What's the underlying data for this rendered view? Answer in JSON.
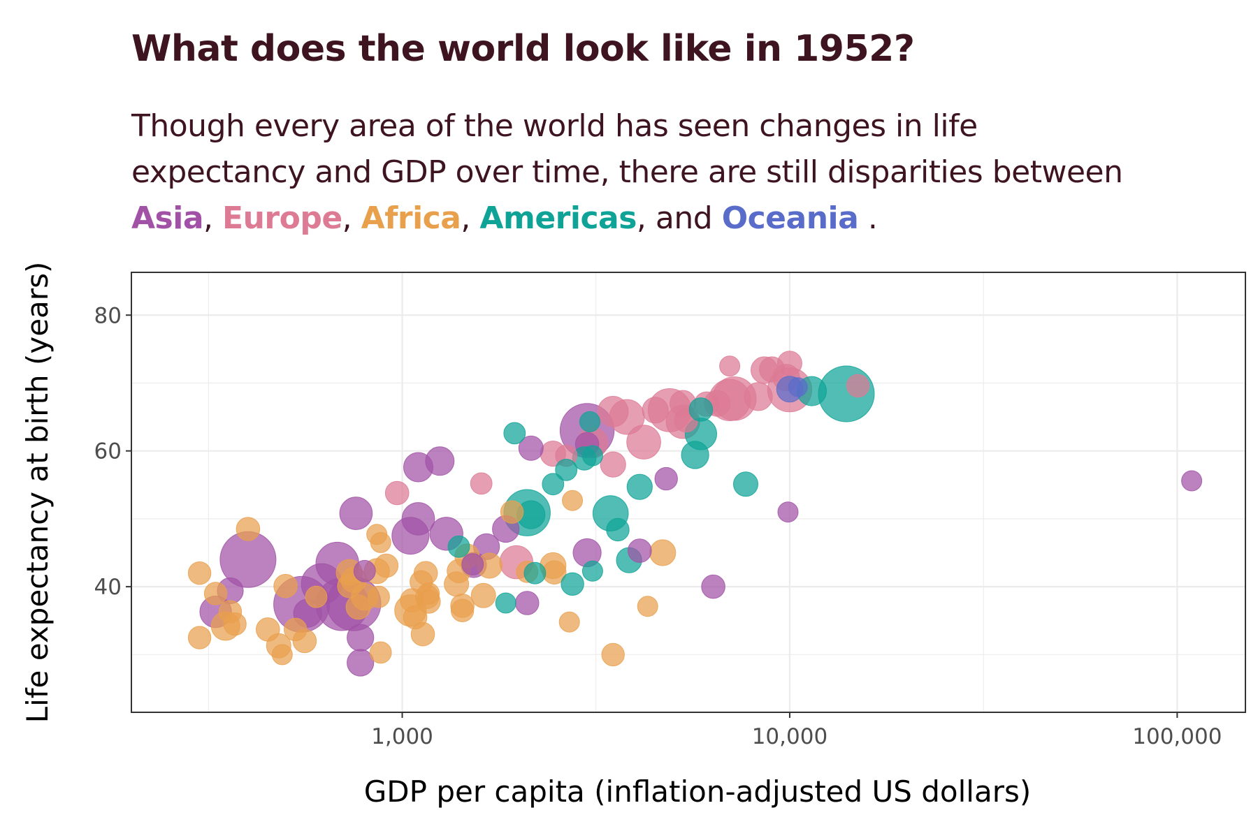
{
  "chart_data": {
    "type": "scatter",
    "title": "What does the world look like in 1952?",
    "subtitle": {
      "line1": "Though every area of the world has seen changes in life",
      "line2": "expectancy and GDP over time, there are still disparities between",
      "asia": "Asia",
      "europe": "Europe",
      "africa": "Africa",
      "americas": "Americas",
      "oceania": "Oceania",
      "sep1": ",",
      "sep2": ",",
      "sep3": ",",
      "sep4": ", ",
      "and": "and",
      "end": "."
    },
    "xlabel": "GDP per capita (inflation-adjusted US dollars)",
    "ylabel": "Life expectancy at birth (years)",
    "x_scale": "log10",
    "xlim": [
      200,
      150000
    ],
    "ylim": [
      21.5,
      86.3
    ],
    "x_ticks": [
      1000,
      10000,
      100000
    ],
    "x_tick_labels": [
      "1,000",
      "10,000",
      "100,000"
    ],
    "y_ticks": [
      40,
      60,
      80
    ],
    "y_tick_labels": [
      "40",
      "60",
      "80"
    ],
    "grid": true,
    "legend": "none",
    "colors": {
      "Asia": "#a152a6",
      "Europe": "#dd7a94",
      "Africa": "#e9a04d",
      "Americas": "#0fa397",
      "Oceania": "#5a6cca",
      "title": "#3d1420"
    },
    "size_variable": "population (millions)",
    "points": [
      {
        "c": "Asia",
        "x": 400,
        "y": 44,
        "pop": 556
      },
      {
        "c": "Asia",
        "x": 550,
        "y": 37.4,
        "pop": 372
      },
      {
        "c": "Asia",
        "x": 750,
        "y": 37.5,
        "pop": 86
      },
      {
        "c": "Asia",
        "x": 700,
        "y": 37.4,
        "pop": 80
      },
      {
        "c": "Asia",
        "x": 1300,
        "y": 47.8,
        "pop": 21
      },
      {
        "c": "Asia",
        "x": 680,
        "y": 43.4,
        "pop": 46
      },
      {
        "c": "Asia",
        "x": 3000,
        "y": 63,
        "pop": 86
      },
      {
        "c": "Asia",
        "x": 1050,
        "y": 47.5,
        "pop": 30
      },
      {
        "c": "Asia",
        "x": 620,
        "y": 40.4,
        "pop": 40
      },
      {
        "c": "Asia",
        "x": 1100,
        "y": 50,
        "pop": 20
      },
      {
        "c": "Asia",
        "x": 760,
        "y": 50.8,
        "pop": 20
      },
      {
        "c": "Asia",
        "x": 1100,
        "y": 57.6,
        "pop": 14
      },
      {
        "c": "Asia",
        "x": 1250,
        "y": 58.5,
        "pop": 13
      },
      {
        "c": "Asia",
        "x": 330,
        "y": 36.3,
        "pop": 18
      },
      {
        "c": "Asia",
        "x": 570,
        "y": 36.1,
        "pop": 12
      },
      {
        "c": "Asia",
        "x": 780,
        "y": 32.5,
        "pop": 10
      },
      {
        "c": "Asia",
        "x": 780,
        "y": 28.8,
        "pop": 10
      },
      {
        "c": "Asia",
        "x": 360,
        "y": 39.4,
        "pop": 9
      },
      {
        "c": "Asia",
        "x": 1650,
        "y": 45.9,
        "pop": 9
      },
      {
        "c": "Asia",
        "x": 1850,
        "y": 48.5,
        "pop": 10
      },
      {
        "c": "Asia",
        "x": 1530,
        "y": 43.2,
        "pop": 8
      },
      {
        "c": "Asia",
        "x": 3000,
        "y": 45,
        "pop": 12
      },
      {
        "c": "Asia",
        "x": 2100,
        "y": 37.6,
        "pop": 6
      },
      {
        "c": "Asia",
        "x": 2150,
        "y": 60.4,
        "pop": 7
      },
      {
        "c": "Asia",
        "x": 3000,
        "y": 61,
        "pop": 6
      },
      {
        "c": "Asia",
        "x": 4100,
        "y": 45.3,
        "pop": 6
      },
      {
        "c": "Asia",
        "x": 4800,
        "y": 55.9,
        "pop": 5
      },
      {
        "c": "Asia",
        "x": 6350,
        "y": 40,
        "pop": 6
      },
      {
        "c": "Asia",
        "x": 9900,
        "y": 51,
        "pop": 3
      },
      {
        "c": "Asia",
        "x": 109000,
        "y": 55.6,
        "pop": 3
      },
      {
        "c": "Asia",
        "x": 800,
        "y": 42.3,
        "pop": 4
      },
      {
        "c": "Asia",
        "x": 1520,
        "y": 43.3,
        "pop": 4
      },
      {
        "c": "Europe",
        "x": 10000,
        "y": 69,
        "pop": 50
      },
      {
        "c": "Europe",
        "x": 7000,
        "y": 67.5,
        "pop": 42
      },
      {
        "c": "Europe",
        "x": 7200,
        "y": 67.7,
        "pop": 48
      },
      {
        "c": "Europe",
        "x": 4900,
        "y": 66,
        "pop": 47
      },
      {
        "c": "Europe",
        "x": 3800,
        "y": 65,
        "pop": 25
      },
      {
        "c": "Europe",
        "x": 5300,
        "y": 64.3,
        "pop": 22
      },
      {
        "c": "Europe",
        "x": 4200,
        "y": 61.3,
        "pop": 23
      },
      {
        "c": "Europe",
        "x": 3500,
        "y": 65.8,
        "pop": 16
      },
      {
        "c": "Europe",
        "x": 8300,
        "y": 68,
        "pop": 12
      },
      {
        "c": "Europe",
        "x": 9000,
        "y": 72,
        "pop": 8
      },
      {
        "c": "Europe",
        "x": 8600,
        "y": 71.9,
        "pop": 10
      },
      {
        "c": "Europe",
        "x": 9800,
        "y": 70.8,
        "pop": 10
      },
      {
        "c": "Europe",
        "x": 7000,
        "y": 72.5,
        "pop": 3
      },
      {
        "c": "Europe",
        "x": 10000,
        "y": 72.9,
        "pop": 7
      },
      {
        "c": "Europe",
        "x": 6500,
        "y": 67,
        "pop": 9
      },
      {
        "c": "Europe",
        "x": 6100,
        "y": 66.9,
        "pop": 7
      },
      {
        "c": "Europe",
        "x": 5300,
        "y": 67,
        "pop": 9
      },
      {
        "c": "Europe",
        "x": 4500,
        "y": 66,
        "pop": 9
      },
      {
        "c": "Europe",
        "x": 5400,
        "y": 64.5,
        "pop": 6
      },
      {
        "c": "Europe",
        "x": 3100,
        "y": 61.2,
        "pop": 16
      },
      {
        "c": "Europe",
        "x": 2450,
        "y": 59.6,
        "pop": 8
      },
      {
        "c": "Europe",
        "x": 2650,
        "y": 59.3,
        "pop": 4
      },
      {
        "c": "Europe",
        "x": 3500,
        "y": 58,
        "pop": 8
      },
      {
        "c": "Europe",
        "x": 1600,
        "y": 55.2,
        "pop": 4
      },
      {
        "c": "Europe",
        "x": 970,
        "y": 53.8,
        "pop": 6
      },
      {
        "c": "Europe",
        "x": 1970,
        "y": 43.6,
        "pop": 21
      },
      {
        "c": "Europe",
        "x": 15000,
        "y": 69.6,
        "pop": 5
      },
      {
        "c": "Africa",
        "x": 400,
        "y": 48.5,
        "pop": 6
      },
      {
        "c": "Africa",
        "x": 300,
        "y": 42,
        "pop": 5
      },
      {
        "c": "Africa",
        "x": 300,
        "y": 32.5,
        "pop": 5
      },
      {
        "c": "Africa",
        "x": 350,
        "y": 34.2,
        "pop": 13
      },
      {
        "c": "Africa",
        "x": 370,
        "y": 34.5,
        "pop": 5
      },
      {
        "c": "Africa",
        "x": 330,
        "y": 39,
        "pop": 5
      },
      {
        "c": "Africa",
        "x": 360,
        "y": 36.3,
        "pop": 5
      },
      {
        "c": "Africa",
        "x": 450,
        "y": 33.7,
        "pop": 6
      },
      {
        "c": "Africa",
        "x": 480,
        "y": 31.3,
        "pop": 7
      },
      {
        "c": "Africa",
        "x": 490,
        "y": 30,
        "pop": 3
      },
      {
        "c": "Africa",
        "x": 530,
        "y": 33.7,
        "pop": 5
      },
      {
        "c": "Africa",
        "x": 560,
        "y": 32,
        "pop": 6
      },
      {
        "c": "Africa",
        "x": 500,
        "y": 40.1,
        "pop": 6
      },
      {
        "c": "Africa",
        "x": 600,
        "y": 38.5,
        "pop": 4
      },
      {
        "c": "Africa",
        "x": 730,
        "y": 42.1,
        "pop": 9
      },
      {
        "c": "Africa",
        "x": 750,
        "y": 41,
        "pop": 8
      },
      {
        "c": "Africa",
        "x": 730,
        "y": 40.1,
        "pop": 6
      },
      {
        "c": "Africa",
        "x": 770,
        "y": 37,
        "pop": 7
      },
      {
        "c": "Africa",
        "x": 800,
        "y": 38.5,
        "pop": 10
      },
      {
        "c": "Africa",
        "x": 860,
        "y": 42.3,
        "pop": 8
      },
      {
        "c": "Africa",
        "x": 910,
        "y": 43.1,
        "pop": 6
      },
      {
        "c": "Africa",
        "x": 860,
        "y": 47.7,
        "pop": 3
      },
      {
        "c": "Africa",
        "x": 880,
        "y": 46.5,
        "pop": 3
      },
      {
        "c": "Africa",
        "x": 870,
        "y": 38.5,
        "pop": 4
      },
      {
        "c": "Africa",
        "x": 880,
        "y": 30.3,
        "pop": 4
      },
      {
        "c": "Africa",
        "x": 1050,
        "y": 36.5,
        "pop": 18
      },
      {
        "c": "Africa",
        "x": 1060,
        "y": 38,
        "pop": 6
      },
      {
        "c": "Africa",
        "x": 1080,
        "y": 35.5,
        "pop": 6
      },
      {
        "c": "Africa",
        "x": 1120,
        "y": 40.7,
        "pop": 5
      },
      {
        "c": "Africa",
        "x": 1130,
        "y": 33,
        "pop": 6
      },
      {
        "c": "Africa",
        "x": 1150,
        "y": 42,
        "pop": 6
      },
      {
        "c": "Africa",
        "x": 1160,
        "y": 38.5,
        "pop": 6
      },
      {
        "c": "Africa",
        "x": 1170,
        "y": 37.8,
        "pop": 6
      },
      {
        "c": "Africa",
        "x": 1170,
        "y": 39,
        "pop": 4
      },
      {
        "c": "Africa",
        "x": 1380,
        "y": 40.4,
        "pop": 7
      },
      {
        "c": "Africa",
        "x": 1400,
        "y": 42.3,
        "pop": 6
      },
      {
        "c": "Africa",
        "x": 1430,
        "y": 37.2,
        "pop": 6
      },
      {
        "c": "Africa",
        "x": 1430,
        "y": 36.5,
        "pop": 5
      },
      {
        "c": "Africa",
        "x": 1470,
        "y": 44.5,
        "pop": 7
      },
      {
        "c": "Africa",
        "x": 1620,
        "y": 38.7,
        "pop": 7
      },
      {
        "c": "Africa",
        "x": 1680,
        "y": 43.1,
        "pop": 8
      },
      {
        "c": "Africa",
        "x": 1920,
        "y": 51,
        "pop": 5
      },
      {
        "c": "Africa",
        "x": 2100,
        "y": 42.2,
        "pop": 4
      },
      {
        "c": "Africa",
        "x": 2450,
        "y": 43.1,
        "pop": 9
      },
      {
        "c": "Africa",
        "x": 2470,
        "y": 42.1,
        "pop": 6
      },
      {
        "c": "Africa",
        "x": 2750,
        "y": 52.7,
        "pop": 3
      },
      {
        "c": "Africa",
        "x": 2700,
        "y": 34.8,
        "pop": 3
      },
      {
        "c": "Africa",
        "x": 3500,
        "y": 30,
        "pop": 5
      },
      {
        "c": "Africa",
        "x": 4300,
        "y": 37.1,
        "pop": 3
      },
      {
        "c": "Africa",
        "x": 4700,
        "y": 45,
        "pop": 9
      },
      {
        "c": "Americas",
        "x": 14000,
        "y": 68.4,
        "pop": 157
      },
      {
        "c": "Americas",
        "x": 11400,
        "y": 68.8,
        "pop": 14
      },
      {
        "c": "Americas",
        "x": 5900,
        "y": 62.5,
        "pop": 18
      },
      {
        "c": "Americas",
        "x": 5900,
        "y": 66.1,
        "pop": 6
      },
      {
        "c": "Americas",
        "x": 5700,
        "y": 59.4,
        "pop": 11
      },
      {
        "c": "Americas",
        "x": 7700,
        "y": 55.1,
        "pop": 7
      },
      {
        "c": "Americas",
        "x": 3450,
        "y": 50.8,
        "pop": 26
      },
      {
        "c": "Americas",
        "x": 2100,
        "y": 50.9,
        "pop": 57
      },
      {
        "c": "Americas",
        "x": 2150,
        "y": 50.6,
        "pop": 12
      },
      {
        "c": "Americas",
        "x": 3850,
        "y": 43.9,
        "pop": 8
      },
      {
        "c": "Americas",
        "x": 3600,
        "y": 48.4,
        "pop": 5
      },
      {
        "c": "Americas",
        "x": 4100,
        "y": 54.7,
        "pop": 8
      },
      {
        "c": "Americas",
        "x": 2950,
        "y": 58.9,
        "pop": 6
      },
      {
        "c": "Americas",
        "x": 3100,
        "y": 59.3,
        "pop": 3
      },
      {
        "c": "Americas",
        "x": 3050,
        "y": 64.3,
        "pop": 3
      },
      {
        "c": "Americas",
        "x": 2650,
        "y": 57.2,
        "pop": 4
      },
      {
        "c": "Americas",
        "x": 2450,
        "y": 55.1,
        "pop": 4
      },
      {
        "c": "Americas",
        "x": 1950,
        "y": 62.6,
        "pop": 4
      },
      {
        "c": "Americas",
        "x": 2750,
        "y": 40.4,
        "pop": 5
      },
      {
        "c": "Americas",
        "x": 2200,
        "y": 42,
        "pop": 4
      },
      {
        "c": "Americas",
        "x": 3100,
        "y": 42.3,
        "pop": 3
      },
      {
        "c": "Americas",
        "x": 1400,
        "y": 45.9,
        "pop": 4
      },
      {
        "c": "Americas",
        "x": 1850,
        "y": 37.6,
        "pop": 3
      },
      {
        "c": "Oceania",
        "x": 10000,
        "y": 69.1,
        "pop": 9
      },
      {
        "c": "Oceania",
        "x": 10500,
        "y": 69.4,
        "pop": 2
      }
    ]
  }
}
